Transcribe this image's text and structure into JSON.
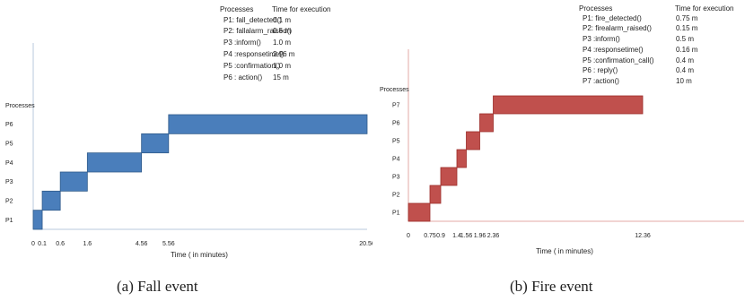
{
  "chart_data": [
    {
      "type": "bar",
      "subtype": "gantt",
      "caption": "(a) Fall event",
      "ylabel": "Processes",
      "xlabel": "Time ( in minutes)",
      "categories": [
        "P1",
        "P2",
        "P3",
        "P4",
        "P5",
        "P6"
      ],
      "x_ticks": [
        "0",
        "0.1",
        "0.6",
        "1.6",
        "4.56",
        "5.56",
        "20.56"
      ],
      "x_tick_values": [
        0,
        0.1,
        0.6,
        1.6,
        4.56,
        5.56,
        20.56
      ],
      "tasks": [
        {
          "label": "P1",
          "start": 0,
          "end": 0.5
        },
        {
          "label": "P2",
          "start": 0.5,
          "end": 1.5
        },
        {
          "label": "P3",
          "start": 1.5,
          "end": 3.0
        },
        {
          "label": "P4",
          "start": 3.0,
          "end": 6.0
        },
        {
          "label": "P5",
          "start": 6.0,
          "end": 7.5
        },
        {
          "label": "P6",
          "start": 7.5,
          "end": 18.5
        }
      ],
      "axis_max": 18.5,
      "color": "#4a7ebb",
      "stroke": "#2f5a8a",
      "axis_color": "#b8c8de",
      "legend": {
        "header_process": "Processes",
        "header_time": "Time for execution",
        "rows": [
          {
            "process": "P1: fall_detected()",
            "time": "0.1 m"
          },
          {
            "process": "P2: fallalarm_raised()",
            "time": "0.5 m"
          },
          {
            "process": "P3 :inform()",
            "time": "1.0 m"
          },
          {
            "process": "P4 :responsetime()",
            "time": "2.96 m"
          },
          {
            "process": "P5 :confirmation()",
            "time": "1.0 m"
          },
          {
            "process": "P6 : action()",
            "time": "15 m"
          }
        ]
      }
    },
    {
      "type": "bar",
      "subtype": "gantt",
      "caption": "(b) Fire event",
      "ylabel": "Processes",
      "xlabel": "Time ( in minutes)",
      "categories": [
        "P1",
        "P2",
        "P3",
        "P4",
        "P5",
        "P6",
        "P7"
      ],
      "x_ticks": [
        "0",
        "0.75",
        "0.9",
        "1.4",
        "1.56",
        "1.96",
        "2.36",
        "12.36"
      ],
      "x_tick_values": [
        0,
        0.75,
        0.9,
        1.4,
        1.56,
        1.96,
        2.36,
        12.36
      ],
      "tasks": [
        {
          "label": "P1",
          "start": 0,
          "end": 1.6
        },
        {
          "label": "P2",
          "start": 1.6,
          "end": 2.4
        },
        {
          "label": "P3",
          "start": 2.4,
          "end": 3.6
        },
        {
          "label": "P4",
          "start": 3.6,
          "end": 4.3
        },
        {
          "label": "P5",
          "start": 4.3,
          "end": 5.3
        },
        {
          "label": "P6",
          "start": 5.3,
          "end": 6.3
        },
        {
          "label": "P7",
          "start": 6.3,
          "end": 17.4
        }
      ],
      "axis_max": 22.2,
      "color": "#c0504d",
      "stroke": "#9c2d2a",
      "axis_color": "#e3a8a6",
      "legend": {
        "header_process": "Processes",
        "header_time": "Time for execution",
        "rows": [
          {
            "process": "P1: fire_detected()",
            "time": "0.75 m"
          },
          {
            "process": "P2: firealarm_raised()",
            "time": "0.15 m"
          },
          {
            "process": "P3 :inform()",
            "time": "0.5 m"
          },
          {
            "process": "P4 :responsetime()",
            "time": "0.16 m"
          },
          {
            "process": "P5 :confirmation_call()",
            "time": "0.4 m"
          },
          {
            "process": "P6 : reply()",
            "time": "0.4 m"
          },
          {
            "process": "P7 :action()",
            "time": "10 m"
          }
        ]
      }
    }
  ]
}
